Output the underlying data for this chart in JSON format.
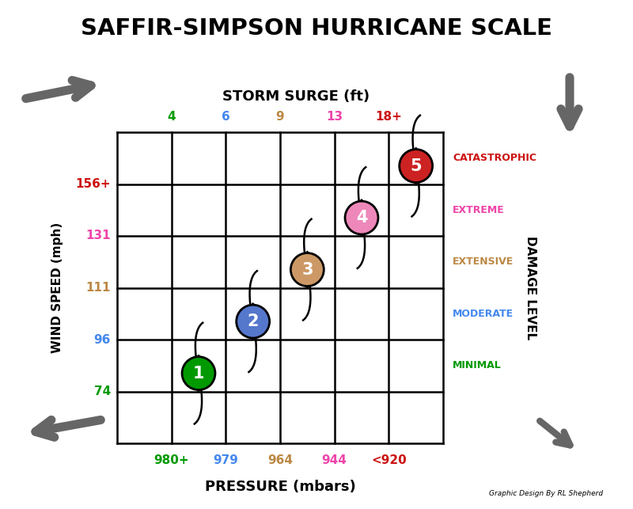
{
  "title": "SAFFIR-SIMPSON HURRICANE SCALE",
  "bg_color": "#ffffff",
  "storm_surge_label": "STORM SURGE (ft)",
  "pressure_label": "PRESSURE (mbars)",
  "wind_speed_label": "WIND SPEED (mph)",
  "damage_label": "DAMAGE LEVEL",
  "storm_surge_values": [
    "4",
    "6",
    "9",
    "13",
    "18+"
  ],
  "storm_surge_colors": [
    "#009900",
    "#4488ee",
    "#bb8844",
    "#ee44aa",
    "#cc1111"
  ],
  "pressure_values": [
    "980+",
    "979",
    "964",
    "944",
    "<920"
  ],
  "pressure_colors": [
    "#009900",
    "#4488ee",
    "#bb8844",
    "#ee44aa",
    "#cc1111"
  ],
  "wind_speed_values": [
    "156+",
    "131",
    "111",
    "96",
    "74"
  ],
  "wind_speed_colors": [
    "#cc1111",
    "#ee44aa",
    "#bb8844",
    "#4488ee",
    "#009900"
  ],
  "damage_labels": [
    "CATASTROPHIC",
    "EXTREME",
    "EXTENSIVE",
    "MODERATE",
    "MINIMAL"
  ],
  "damage_colors": [
    "#cc1111",
    "#ee44aa",
    "#bb8844",
    "#4488ee",
    "#009900"
  ],
  "category_numbers": [
    "1",
    "2",
    "3",
    "4",
    "5"
  ],
  "cat_colors": [
    "#009900",
    "#5577cc",
    "#cc9966",
    "#ee88bb",
    "#cc2222"
  ],
  "cat_text_colors": [
    "white",
    "white",
    "white",
    "white",
    "white"
  ],
  "credit_text": "Graphic Design By RL Shepherd",
  "n_cols": 6,
  "n_rows": 6,
  "cat_col_positions": [
    1,
    2,
    3,
    4,
    5
  ],
  "cat_row_positions": [
    1,
    2,
    3,
    4,
    5
  ]
}
